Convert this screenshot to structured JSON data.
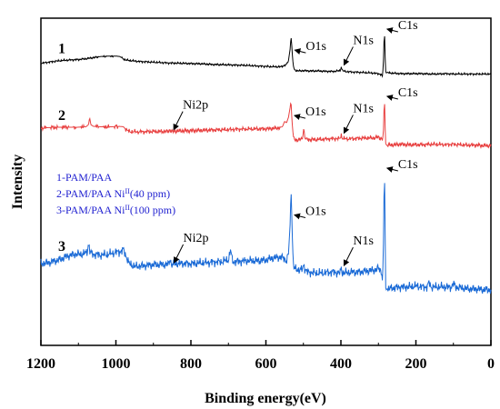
{
  "chart_data": {
    "type": "line",
    "title": "",
    "xlabel": "Binding energy(eV)",
    "ylabel": "Intensity",
    "xlim": [
      1200,
      0
    ],
    "x_reversed": true,
    "y_ticks_shown": false,
    "grid": false,
    "x_ticks": [
      1200,
      1000,
      800,
      600,
      400,
      200,
      0
    ],
    "legend": {
      "placement": "center-left",
      "entries": [
        {
          "text": "1-PAM/PAA",
          "sup": "",
          "tail": ""
        },
        {
          "text": "2-PAM/PAA Ni",
          "sup": "II",
          "tail": "(40 ppm)"
        },
        {
          "text": "3-PAM/PAA Ni",
          "sup": "II",
          "tail": "(100 ppm)"
        }
      ]
    },
    "series": [
      {
        "label": "1",
        "color": "#000000",
        "x": [
          1200,
          1180,
          1150,
          1120,
          1100,
          1080,
          1060,
          1040,
          1020,
          1000,
          990,
          975,
          960,
          940,
          900,
          860,
          820,
          780,
          740,
          700,
          660,
          620,
          580,
          560,
          550,
          545,
          540,
          535,
          533,
          531,
          529,
          527,
          525,
          520,
          510,
          500,
          480,
          460,
          440,
          420,
          410,
          402,
          399,
          396,
          390,
          380,
          360,
          340,
          320,
          300,
          292,
          289,
          286,
          285,
          284,
          283,
          282,
          281,
          279,
          277,
          272,
          260,
          240,
          220,
          200,
          180,
          160,
          140,
          120,
          100,
          80,
          60,
          40,
          20,
          0
        ],
        "y": [
          0.15,
          0.18,
          0.22,
          0.24,
          0.25,
          0.27,
          0.3,
          0.33,
          0.34,
          0.34,
          0.33,
          0.24,
          0.22,
          0.2,
          0.18,
          0.16,
          0.15,
          0.14,
          0.12,
          0.11,
          0.1,
          0.08,
          0.06,
          0.06,
          0.1,
          0.12,
          0.22,
          0.55,
          0.88,
          0.6,
          0.3,
          0.1,
          0.0,
          -0.04,
          -0.05,
          -0.04,
          -0.05,
          -0.05,
          -0.06,
          -0.06,
          -0.05,
          -0.04,
          0.06,
          -0.04,
          -0.06,
          -0.07,
          -0.08,
          -0.09,
          -0.1,
          -0.12,
          -0.15,
          -0.2,
          0.3,
          0.72,
          1.0,
          0.72,
          0.3,
          -0.05,
          -0.1,
          -0.09,
          -0.1,
          -0.11,
          -0.12,
          -0.12,
          -0.12,
          -0.12,
          -0.13,
          -0.13,
          -0.12,
          -0.13,
          -0.13,
          -0.13,
          -0.13,
          -0.13,
          -0.13
        ]
      },
      {
        "label": "2",
        "color": "#e84040",
        "x": [
          1200,
          1180,
          1150,
          1120,
          1100,
          1080,
          1073,
          1070,
          1067,
          1060,
          1040,
          1010,
          990,
          980,
          975,
          965,
          940,
          900,
          880,
          860,
          856,
          853,
          850,
          840,
          800,
          760,
          720,
          680,
          640,
          600,
          570,
          556,
          550,
          545,
          540,
          535,
          533,
          531,
          529,
          527,
          525,
          520,
          510,
          502,
          499,
          496,
          490,
          470,
          450,
          420,
          405,
          402,
          399,
          396,
          390,
          370,
          350,
          330,
          310,
          300,
          292,
          289,
          286,
          285,
          284,
          283,
          282,
          281,
          279,
          277,
          272,
          260,
          240,
          220,
          200,
          180,
          160,
          150,
          140,
          120,
          100,
          80,
          60,
          40,
          20,
          0
        ],
        "y": [
          0.3,
          0.31,
          0.32,
          0.32,
          0.32,
          0.33,
          0.38,
          0.55,
          0.38,
          0.34,
          0.33,
          0.33,
          0.34,
          0.33,
          0.28,
          0.22,
          0.21,
          0.22,
          0.22,
          0.22,
          0.27,
          0.22,
          0.22,
          0.23,
          0.24,
          0.25,
          0.26,
          0.27,
          0.28,
          0.28,
          0.3,
          0.33,
          0.46,
          0.42,
          0.55,
          0.8,
          0.95,
          0.55,
          0.3,
          0.12,
          0.04,
          0.02,
          0.03,
          0.05,
          0.32,
          0.05,
          0.03,
          0.03,
          0.04,
          0.05,
          0.05,
          0.07,
          0.14,
          0.06,
          0.05,
          0.05,
          0.06,
          0.07,
          0.07,
          0.09,
          0.05,
          0.0,
          0.3,
          0.72,
          1.0,
          0.72,
          0.3,
          -0.05,
          -0.09,
          -0.1,
          -0.1,
          -0.09,
          -0.08,
          -0.09,
          -0.09,
          -0.09,
          -0.08,
          -0.08,
          -0.08,
          -0.09,
          -0.08,
          -0.09,
          -0.1,
          -0.1,
          -0.11,
          -0.11
        ]
      },
      {
        "label": "3",
        "color": "#1a6ad6",
        "x": [
          1200,
          1180,
          1150,
          1130,
          1110,
          1090,
          1077,
          1073,
          1069,
          1060,
          1040,
          1020,
          1000,
          985,
          980,
          975,
          965,
          950,
          920,
          890,
          860,
          855,
          852,
          849,
          840,
          800,
          760,
          720,
          700,
          694,
          690,
          686,
          680,
          650,
          620,
          600,
          580,
          560,
          550,
          545,
          540,
          535,
          533,
          531,
          529,
          527,
          525,
          520,
          510,
          502,
          499,
          496,
          490,
          470,
          450,
          420,
          405,
          402,
          399,
          396,
          390,
          370,
          350,
          330,
          310,
          300,
          292,
          289,
          286,
          285,
          284,
          283,
          282,
          281,
          279,
          277,
          272,
          260,
          240,
          220,
          200,
          180,
          170,
          165,
          160,
          140,
          120,
          105,
          100,
          95,
          80,
          60,
          40,
          20,
          0
        ],
        "y": [
          0.0,
          0.01,
          0.04,
          0.08,
          0.1,
          0.1,
          0.12,
          0.22,
          0.12,
          0.1,
          0.09,
          0.1,
          0.12,
          0.13,
          0.15,
          0.1,
          0.0,
          -0.03,
          -0.02,
          -0.01,
          -0.01,
          0.05,
          -0.01,
          -0.01,
          0.0,
          0.0,
          0.01,
          0.02,
          0.04,
          0.15,
          0.04,
          0.02,
          0.02,
          0.03,
          0.03,
          0.04,
          0.06,
          0.07,
          0.05,
          0.03,
          0.1,
          0.45,
          0.82,
          0.5,
          0.2,
          0.02,
          -0.05,
          -0.06,
          -0.07,
          -0.06,
          0.0,
          -0.06,
          -0.09,
          -0.1,
          -0.1,
          -0.09,
          -0.1,
          -0.1,
          -0.04,
          -0.1,
          -0.1,
          -0.09,
          -0.09,
          -0.08,
          -0.07,
          -0.05,
          -0.08,
          -0.2,
          0.3,
          0.72,
          1.0,
          0.72,
          0.3,
          -0.25,
          -0.28,
          -0.27,
          -0.27,
          -0.26,
          -0.25,
          -0.25,
          -0.24,
          -0.25,
          -0.25,
          -0.2,
          -0.25,
          -0.25,
          -0.25,
          -0.25,
          -0.21,
          -0.25,
          -0.26,
          -0.27,
          -0.27,
          -0.28,
          -0.28
        ]
      }
    ],
    "annotations": [
      {
        "text": "O1s",
        "series": 0,
        "x": 530
      },
      {
        "text": "N1s",
        "series": 0,
        "x": 399
      },
      {
        "text": "C1s",
        "series": 0,
        "x": 284
      },
      {
        "text": "Ni2p",
        "series": 1,
        "x": 853
      },
      {
        "text": "O1s",
        "series": 1,
        "x": 531
      },
      {
        "text": "N1s",
        "series": 1,
        "x": 399
      },
      {
        "text": "C1s",
        "series": 1,
        "x": 284
      },
      {
        "text": "O1s",
        "series": 2,
        "x": 531
      },
      {
        "text": "C1s",
        "series": 2,
        "x": 284
      },
      {
        "text": "Ni2p",
        "series": 2,
        "x": 852
      },
      {
        "text": "N1s",
        "series": 2,
        "x": 399
      }
    ]
  }
}
